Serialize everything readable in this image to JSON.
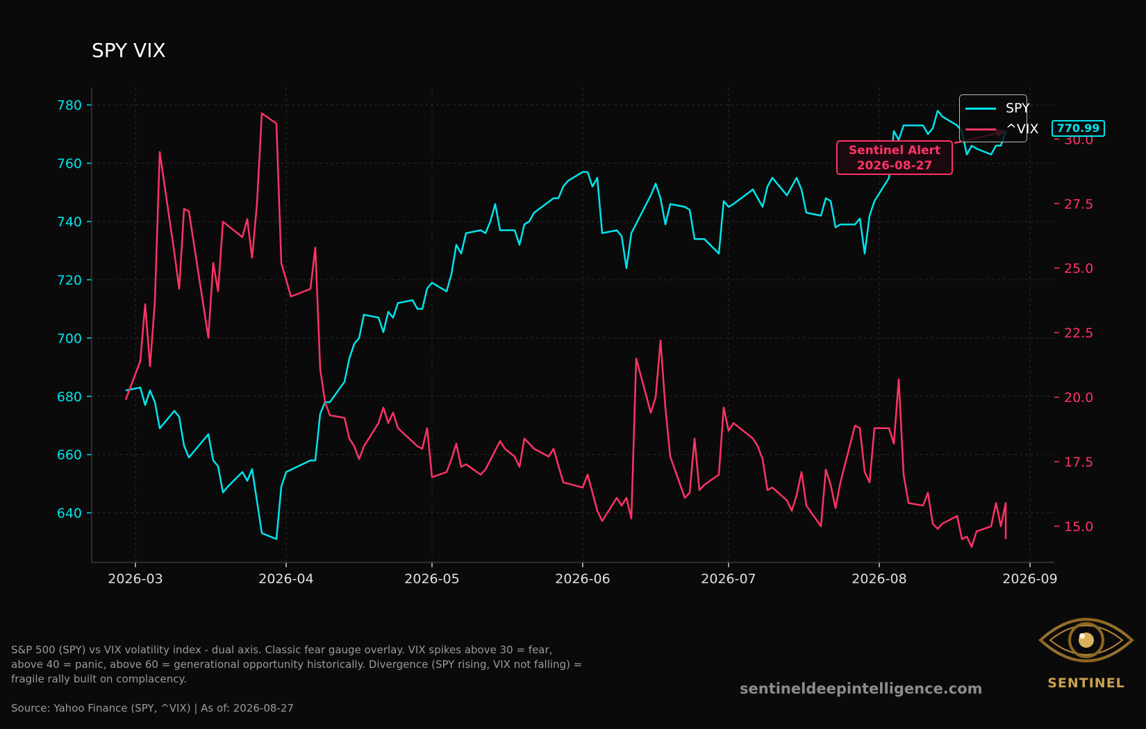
{
  "chart_data": {
    "type": "line",
    "title": "SPY VIX",
    "x_ticks": [
      "2026-03",
      "2026-04",
      "2026-05",
      "2026-06",
      "2026-07",
      "2026-08",
      "2026-09"
    ],
    "y_left": {
      "ticks": [
        640,
        660,
        680,
        700,
        720,
        740,
        760,
        780
      ],
      "range": [
        623,
        786
      ],
      "color": "#00e5ee"
    },
    "y_right": {
      "ticks": [
        "15.0",
        "17.5",
        "20.0",
        "22.5",
        "25.0",
        "27.5",
        "30.0"
      ],
      "range": [
        13.6,
        32.0
      ],
      "color": "#ff3366"
    },
    "grid": true,
    "legend_position": "top-right",
    "series": [
      {
        "name": "SPY",
        "axis": "left",
        "color": "#00e5ee",
        "points": [
          [
            "2026-02-27",
            682
          ],
          [
            "2026-03-02",
            683
          ],
          [
            "2026-03-03",
            677
          ],
          [
            "2026-03-04",
            682
          ],
          [
            "2026-03-05",
            678
          ],
          [
            "2026-03-06",
            669
          ],
          [
            "2026-03-09",
            675
          ],
          [
            "2026-03-10",
            673
          ],
          [
            "2026-03-11",
            663
          ],
          [
            "2026-03-12",
            659
          ],
          [
            "2026-03-13",
            661
          ],
          [
            "2026-03-16",
            667
          ],
          [
            "2026-03-17",
            658
          ],
          [
            "2026-03-18",
            656
          ],
          [
            "2026-03-19",
            647
          ],
          [
            "2026-03-20",
            649
          ],
          [
            "2026-03-23",
            654
          ],
          [
            "2026-03-24",
            651
          ],
          [
            "2026-03-25",
            655
          ],
          [
            "2026-03-26",
            644
          ],
          [
            "2026-03-27",
            633
          ],
          [
            "2026-03-30",
            631
          ],
          [
            "2026-03-31",
            649
          ],
          [
            "2026-04-01",
            654
          ],
          [
            "2026-04-06",
            658
          ],
          [
            "2026-04-07",
            658
          ],
          [
            "2026-04-08",
            674
          ],
          [
            "2026-04-09",
            678
          ],
          [
            "2026-04-10",
            678
          ],
          [
            "2026-04-13",
            685
          ],
          [
            "2026-04-14",
            693
          ],
          [
            "2026-04-15",
            698
          ],
          [
            "2026-04-16",
            700
          ],
          [
            "2026-04-17",
            708
          ],
          [
            "2026-04-20",
            707
          ],
          [
            "2026-04-21",
            702
          ],
          [
            "2026-04-22",
            709
          ],
          [
            "2026-04-23",
            707
          ],
          [
            "2026-04-24",
            712
          ],
          [
            "2026-04-27",
            713
          ],
          [
            "2026-04-28",
            710
          ],
          [
            "2026-04-29",
            710
          ],
          [
            "2026-04-30",
            717
          ],
          [
            "2026-05-01",
            719
          ],
          [
            "2026-05-04",
            716
          ],
          [
            "2026-05-05",
            722
          ],
          [
            "2026-05-06",
            732
          ],
          [
            "2026-05-07",
            729
          ],
          [
            "2026-05-08",
            736
          ],
          [
            "2026-05-11",
            737
          ],
          [
            "2026-05-12",
            736
          ],
          [
            "2026-05-13",
            740
          ],
          [
            "2026-05-14",
            746
          ],
          [
            "2026-05-15",
            737
          ],
          [
            "2026-05-18",
            737
          ],
          [
            "2026-05-19",
            732
          ],
          [
            "2026-05-20",
            739
          ],
          [
            "2026-05-21",
            740
          ],
          [
            "2026-05-22",
            743
          ],
          [
            "2026-05-26",
            748
          ],
          [
            "2026-05-27",
            748
          ],
          [
            "2026-05-28",
            752
          ],
          [
            "2026-05-29",
            754
          ],
          [
            "2026-06-01",
            757
          ],
          [
            "2026-06-02",
            757
          ],
          [
            "2026-06-03",
            752
          ],
          [
            "2026-06-04",
            755
          ],
          [
            "2026-06-05",
            736
          ],
          [
            "2026-06-08",
            737
          ],
          [
            "2026-06-09",
            735
          ],
          [
            "2026-06-10",
            724
          ],
          [
            "2026-06-11",
            736
          ],
          [
            "2026-06-15",
            749
          ],
          [
            "2026-06-16",
            753
          ],
          [
            "2026-06-17",
            748
          ],
          [
            "2026-06-18",
            739
          ],
          [
            "2026-06-19",
            746
          ],
          [
            "2026-06-22",
            745
          ],
          [
            "2026-06-23",
            744
          ],
          [
            "2026-06-24",
            734
          ],
          [
            "2026-06-25",
            734
          ],
          [
            "2026-06-26",
            734
          ],
          [
            "2026-06-29",
            729
          ],
          [
            "2026-06-30",
            747
          ],
          [
            "2026-07-01",
            745
          ],
          [
            "2026-07-02",
            746
          ],
          [
            "2026-07-06",
            751
          ],
          [
            "2026-07-07",
            748
          ],
          [
            "2026-07-08",
            745
          ],
          [
            "2026-07-09",
            752
          ],
          [
            "2026-07-10",
            755
          ],
          [
            "2026-07-13",
            749
          ],
          [
            "2026-07-14",
            752
          ],
          [
            "2026-07-15",
            755
          ],
          [
            "2026-07-16",
            751
          ],
          [
            "2026-07-17",
            743
          ],
          [
            "2026-07-20",
            742
          ],
          [
            "2026-07-21",
            748
          ],
          [
            "2026-07-22",
            747
          ],
          [
            "2026-07-23",
            738
          ],
          [
            "2026-07-24",
            739
          ],
          [
            "2026-07-27",
            739
          ],
          [
            "2026-07-28",
            741
          ],
          [
            "2026-07-29",
            729
          ],
          [
            "2026-07-30",
            742
          ],
          [
            "2026-07-31",
            747
          ],
          [
            "2026-08-03",
            755
          ],
          [
            "2026-08-04",
            771
          ],
          [
            "2026-08-05",
            768
          ],
          [
            "2026-08-06",
            773
          ],
          [
            "2026-08-07",
            773
          ],
          [
            "2026-08-10",
            773
          ],
          [
            "2026-08-11",
            770
          ],
          [
            "2026-08-12",
            772
          ],
          [
            "2026-08-13",
            778
          ],
          [
            "2026-08-14",
            776
          ],
          [
            "2026-08-17",
            773
          ],
          [
            "2026-08-18",
            771
          ],
          [
            "2026-08-19",
            763
          ],
          [
            "2026-08-20",
            766
          ],
          [
            "2026-08-21",
            765
          ],
          [
            "2026-08-24",
            763
          ],
          [
            "2026-08-25",
            766
          ],
          [
            "2026-08-26",
            766
          ],
          [
            "2026-08-27",
            771
          ]
        ]
      },
      {
        "name": "^VIX",
        "axis": "right",
        "color": "#ff3366",
        "points": [
          [
            "2026-02-27",
            19.9
          ],
          [
            "2026-03-02",
            21.4
          ],
          [
            "2026-03-03",
            23.6
          ],
          [
            "2026-03-04",
            21.2
          ],
          [
            "2026-03-05",
            23.7
          ],
          [
            "2026-03-06",
            29.5
          ],
          [
            "2026-03-09",
            25.6
          ],
          [
            "2026-03-10",
            24.2
          ],
          [
            "2026-03-11",
            27.3
          ],
          [
            "2026-03-12",
            27.2
          ],
          [
            "2026-03-16",
            22.3
          ],
          [
            "2026-03-17",
            25.2
          ],
          [
            "2026-03-18",
            24.1
          ],
          [
            "2026-03-19",
            26.8
          ],
          [
            "2026-03-23",
            26.2
          ],
          [
            "2026-03-24",
            26.9
          ],
          [
            "2026-03-25",
            25.4
          ],
          [
            "2026-03-26",
            27.5
          ],
          [
            "2026-03-27",
            31.0
          ],
          [
            "2026-03-30",
            30.6
          ],
          [
            "2026-03-31",
            25.2
          ],
          [
            "2026-04-02",
            23.9
          ],
          [
            "2026-04-06",
            24.2
          ],
          [
            "2026-04-07",
            25.8
          ],
          [
            "2026-04-08",
            21.1
          ],
          [
            "2026-04-09",
            19.8
          ],
          [
            "2026-04-10",
            19.3
          ],
          [
            "2026-04-13",
            19.2
          ],
          [
            "2026-04-14",
            18.4
          ],
          [
            "2026-04-15",
            18.1
          ],
          [
            "2026-04-16",
            17.6
          ],
          [
            "2026-04-17",
            18.1
          ],
          [
            "2026-04-20",
            19.0
          ],
          [
            "2026-04-21",
            19.6
          ],
          [
            "2026-04-22",
            19.0
          ],
          [
            "2026-04-23",
            19.4
          ],
          [
            "2026-04-24",
            18.8
          ],
          [
            "2026-04-28",
            18.1
          ],
          [
            "2026-04-29",
            18.0
          ],
          [
            "2026-04-30",
            18.8
          ],
          [
            "2026-05-01",
            16.9
          ],
          [
            "2026-05-04",
            17.1
          ],
          [
            "2026-05-05",
            17.6
          ],
          [
            "2026-05-06",
            18.2
          ],
          [
            "2026-05-07",
            17.3
          ],
          [
            "2026-05-08",
            17.4
          ],
          [
            "2026-05-11",
            17.0
          ],
          [
            "2026-05-12",
            17.2
          ],
          [
            "2026-05-15",
            18.3
          ],
          [
            "2026-05-16",
            18.0
          ],
          [
            "2026-05-18",
            17.7
          ],
          [
            "2026-05-19",
            17.3
          ],
          [
            "2026-05-20",
            18.4
          ],
          [
            "2026-05-22",
            18.0
          ],
          [
            "2026-05-25",
            17.7
          ],
          [
            "2026-05-26",
            18.0
          ],
          [
            "2026-05-28",
            16.7
          ],
          [
            "2026-06-01",
            16.5
          ],
          [
            "2026-06-02",
            17.0
          ],
          [
            "2026-06-03",
            16.3
          ],
          [
            "2026-06-04",
            15.6
          ],
          [
            "2026-06-05",
            15.2
          ],
          [
            "2026-06-08",
            16.1
          ],
          [
            "2026-06-09",
            15.8
          ],
          [
            "2026-06-10",
            16.1
          ],
          [
            "2026-06-11",
            15.3
          ],
          [
            "2026-06-12",
            21.5
          ],
          [
            "2026-06-15",
            19.4
          ],
          [
            "2026-06-16",
            20.0
          ],
          [
            "2026-06-17",
            22.2
          ],
          [
            "2026-06-18",
            19.6
          ],
          [
            "2026-06-19",
            17.7
          ],
          [
            "2026-06-22",
            16.1
          ],
          [
            "2026-06-23",
            16.3
          ],
          [
            "2026-06-24",
            18.4
          ],
          [
            "2026-06-25",
            16.4
          ],
          [
            "2026-06-26",
            16.6
          ],
          [
            "2026-06-29",
            17.0
          ],
          [
            "2026-06-30",
            19.6
          ],
          [
            "2026-07-01",
            18.7
          ],
          [
            "2026-07-02",
            19.0
          ],
          [
            "2026-07-06",
            18.4
          ],
          [
            "2026-07-07",
            18.1
          ],
          [
            "2026-07-08",
            17.6
          ],
          [
            "2026-07-09",
            16.4
          ],
          [
            "2026-07-10",
            16.5
          ],
          [
            "2026-07-13",
            16.0
          ],
          [
            "2026-07-14",
            15.6
          ],
          [
            "2026-07-15",
            16.2
          ],
          [
            "2026-07-16",
            17.1
          ],
          [
            "2026-07-17",
            15.8
          ],
          [
            "2026-07-20",
            15.0
          ],
          [
            "2026-07-21",
            17.2
          ],
          [
            "2026-07-22",
            16.6
          ],
          [
            "2026-07-23",
            15.7
          ],
          [
            "2026-07-24",
            16.7
          ],
          [
            "2026-07-27",
            18.9
          ],
          [
            "2026-07-28",
            18.8
          ],
          [
            "2026-07-29",
            17.1
          ],
          [
            "2026-07-30",
            16.7
          ],
          [
            "2026-07-31",
            18.8
          ],
          [
            "2026-08-03",
            18.8
          ],
          [
            "2026-08-04",
            18.2
          ],
          [
            "2026-08-05",
            20.7
          ],
          [
            "2026-08-06",
            17.0
          ],
          [
            "2026-08-07",
            15.9
          ],
          [
            "2026-08-10",
            15.8
          ],
          [
            "2026-08-11",
            16.3
          ],
          [
            "2026-08-12",
            15.1
          ],
          [
            "2026-08-13",
            14.9
          ],
          [
            "2026-08-14",
            15.1
          ],
          [
            "2026-08-17",
            15.4
          ],
          [
            "2026-08-18",
            14.5
          ],
          [
            "2026-08-19",
            14.6
          ],
          [
            "2026-08-20",
            14.2
          ],
          [
            "2026-08-21",
            14.8
          ],
          [
            "2026-08-24",
            15.0
          ],
          [
            "2026-08-25",
            15.9
          ],
          [
            "2026-08-26",
            15.0
          ],
          [
            "2026-08-27",
            15.9
          ],
          [
            "2026-08-27",
            15.6
          ],
          [
            "2026-08-27",
            14.5
          ]
        ]
      }
    ],
    "annotation": {
      "label_line1": "Sentinel Alert",
      "label_line2": "2026-08-27",
      "color": "#ff3366"
    },
    "last_value_label": "770.99"
  },
  "caption": "S&P 500 (SPY) vs VIX volatility index - dual axis. Classic fear gauge overlay. VIX spikes above 30 = fear, above 40 = panic, above 60 = generational opportunity historically. Divergence (SPY rising, VIX not falling) = fragile rally built on complacency.",
  "source": "Source: Yahoo Finance (SPY, ^VIX) | As of: 2026-08-27",
  "website": "sentineldeepintelligence.com",
  "logo_text": "SENTINEL"
}
